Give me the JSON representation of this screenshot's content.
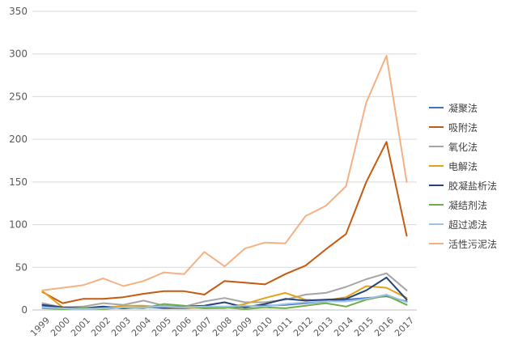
{
  "chart_data": {
    "type": "line",
    "title": "",
    "xlabel": "",
    "ylabel": "",
    "ylim": [
      0,
      350
    ],
    "yticks": [
      0,
      50,
      100,
      150,
      200,
      250,
      300,
      350
    ],
    "grid": true,
    "legend_position": "right",
    "categories": [
      "1999",
      "2000",
      "2001",
      "2002",
      "2003",
      "2004",
      "2005",
      "2006",
      "2007",
      "2008",
      "2009",
      "2010",
      "2011",
      "2012",
      "2013",
      "2014",
      "2015",
      "2016",
      "2017"
    ],
    "series": [
      {
        "name": "凝聚法",
        "color": "#4472C4",
        "values": [
          5,
          2,
          2,
          3,
          2,
          4,
          2,
          2,
          3,
          3,
          4,
          5,
          6,
          8,
          10,
          12,
          14,
          16,
          10
        ]
      },
      {
        "name": "吸附法",
        "color": "#C55A11",
        "values": [
          21,
          8,
          13,
          13,
          15,
          19,
          22,
          22,
          18,
          34,
          32,
          30,
          42,
          52,
          71,
          89,
          150,
          197,
          87
        ]
      },
      {
        "name": "氧化法",
        "color": "#A5A5A5",
        "values": [
          8,
          3,
          4,
          8,
          6,
          11,
          5,
          4,
          10,
          14,
          9,
          9,
          12,
          18,
          20,
          27,
          36,
          43,
          23
        ]
      },
      {
        "name": "电解法",
        "color": "#E3A317",
        "values": [
          22,
          3,
          2,
          2,
          5,
          5,
          3,
          3,
          2,
          2,
          7,
          14,
          20,
          12,
          11,
          15,
          28,
          26,
          14
        ]
      },
      {
        "name": "胶凝盐析法",
        "color": "#264478",
        "values": [
          6,
          3,
          2,
          4,
          2,
          3,
          3,
          4,
          5,
          9,
          3,
          7,
          13,
          11,
          12,
          13,
          23,
          38,
          12
        ]
      },
      {
        "name": "凝结剂法",
        "color": "#70AD47",
        "values": [
          2,
          1,
          2,
          1,
          3,
          2,
          7,
          5,
          2,
          3,
          1,
          3,
          2,
          5,
          8,
          4,
          12,
          17,
          6
        ]
      },
      {
        "name": "超过滤法",
        "color": "#9DC3E6",
        "values": [
          3,
          2,
          1,
          2,
          3,
          3,
          4,
          3,
          4,
          4,
          5,
          4,
          7,
          9,
          10,
          10,
          13,
          18,
          9
        ]
      },
      {
        "name": "活性污泥法",
        "color": "#F4B183",
        "values": [
          23,
          26,
          29,
          37,
          28,
          34,
          44,
          42,
          68,
          51,
          72,
          79,
          78,
          110,
          122,
          145,
          243,
          298,
          150
        ]
      }
    ]
  }
}
